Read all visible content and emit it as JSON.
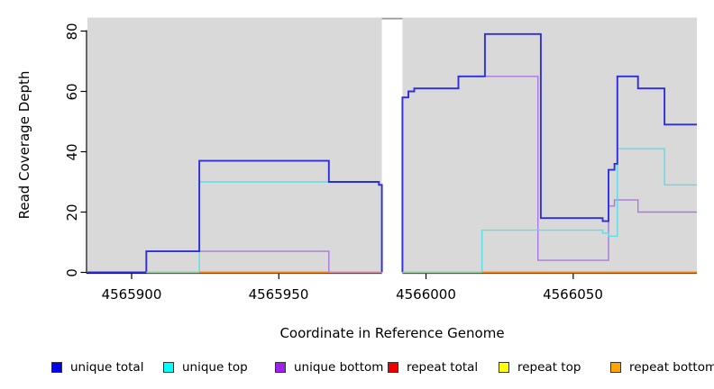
{
  "figure": {
    "background": "#ffffff",
    "plot_background": "#d9d9d9",
    "axis_color": "#000000",
    "gap_cap_color": "#999999"
  },
  "axes": {
    "x_label": "Coordinate in Reference Genome",
    "y_label": "Read Coverage Depth",
    "x_ticks": [
      {
        "value": 4565900,
        "label": "4565900"
      },
      {
        "value": 4565950,
        "label": "4565950"
      },
      {
        "value": 4566000,
        "label": "4566000"
      },
      {
        "value": 4566050,
        "label": "4566050"
      }
    ],
    "y_ticks": [
      {
        "value": 0,
        "label": "0"
      },
      {
        "value": 20,
        "label": "20"
      },
      {
        "value": 40,
        "label": "40"
      },
      {
        "value": 60,
        "label": "60"
      },
      {
        "value": 80,
        "label": "80"
      }
    ]
  },
  "legend": {
    "items": [
      {
        "label": "unique total",
        "color": "#0000ee"
      },
      {
        "label": "unique top",
        "color": "#00ffff"
      },
      {
        "label": "unique bottom",
        "color": "#a020f0"
      },
      {
        "label": "repeat total",
        "color": "#ee0000"
      },
      {
        "label": "repeat top",
        "color": "#ffff00"
      },
      {
        "label": "repeat bottom",
        "color": "#ffa500"
      }
    ]
  },
  "chart_data": {
    "type": "line",
    "subtype": "step-coverage",
    "title": "",
    "xlabel": "Coordinate in Reference Genome",
    "ylabel": "Read Coverage Depth",
    "x_domain": [
      4565885,
      4566092
    ],
    "y_domain": [
      0,
      84.5
    ],
    "grid": false,
    "legend_position": "bottom",
    "gap": {
      "from": 4565985,
      "to": 4565992,
      "note": "white vertical band, no data plotted"
    },
    "series": [
      {
        "name": "repeat total",
        "color": "#e02020",
        "width": 1.4,
        "segments": [
          [
            [
              4565885,
              0
            ],
            [
              4565985,
              0
            ]
          ],
          [
            [
              4565992,
              0
            ],
            [
              4566092,
              0
            ]
          ]
        ]
      },
      {
        "name": "repeat top",
        "color": "#ffd900",
        "width": 1.4,
        "segments": [
          [
            [
              4565885,
              0
            ],
            [
              4565985,
              0
            ]
          ],
          [
            [
              4565992,
              0
            ],
            [
              4566092,
              0
            ]
          ]
        ]
      },
      {
        "name": "repeat bottom",
        "color": "#ff8c00",
        "width": 1.8,
        "segments": [
          [
            [
              4565885,
              0
            ],
            [
              4565985,
              0
            ]
          ],
          [
            [
              4565992,
              0
            ],
            [
              4566092,
              0
            ]
          ]
        ]
      },
      {
        "name": "unique bottom",
        "color": "#ab77e0",
        "width": 1.4,
        "segments": [
          [
            [
              4565885,
              0
            ],
            [
              4565905,
              7
            ],
            [
              4565967,
              0
            ],
            [
              4565985,
              0
            ]
          ],
          [
            [
              4565992,
              0
            ],
            [
              4565992,
              58
            ],
            [
              4565994,
              60
            ],
            [
              4565996,
              61
            ],
            [
              4566011,
              65
            ],
            [
              4566038,
              4
            ],
            [
              4566062,
              22
            ],
            [
              4566064,
              24
            ],
            [
              4566072,
              20
            ],
            [
              4566092,
              20
            ]
          ]
        ]
      },
      {
        "name": "unique top",
        "color": "#5cdde8",
        "width": 1.4,
        "segments": [
          [
            [
              4565885,
              0
            ],
            [
              4565923,
              30
            ],
            [
              4565984,
              29
            ],
            [
              4565985,
              0
            ]
          ],
          [
            [
              4565992,
              0
            ],
            [
              4566019,
              14
            ],
            [
              4566060,
              13
            ],
            [
              4566062,
              12
            ],
            [
              4566065,
              41
            ],
            [
              4566081,
              29
            ],
            [
              4566092,
              29
            ]
          ]
        ]
      },
      {
        "name": "unique total",
        "color": "#2e2ee0",
        "width": 1.9,
        "segments": [
          [
            [
              4565885,
              0
            ],
            [
              4565905,
              7
            ],
            [
              4565923,
              37
            ],
            [
              4565967,
              30
            ],
            [
              4565984,
              29
            ],
            [
              4565985,
              0
            ]
          ],
          [
            [
              4565992,
              0
            ],
            [
              4565992,
              58
            ],
            [
              4565994,
              60
            ],
            [
              4565996,
              61
            ],
            [
              4566011,
              65
            ],
            [
              4566020,
              79
            ],
            [
              4566039,
              18
            ],
            [
              4566060,
              17
            ],
            [
              4566062,
              34
            ],
            [
              4566064,
              36
            ],
            [
              4566065,
              65
            ],
            [
              4566072,
              61
            ],
            [
              4566081,
              49
            ],
            [
              4566092,
              49
            ]
          ]
        ]
      }
    ],
    "baseline_segments": [
      {
        "from": 4565885,
        "to": 4565905,
        "color": "#2e2ee0",
        "width": 1.9,
        "note": "unique lines at 0"
      },
      {
        "from": 4565905,
        "to": 4565923,
        "color": "#9ed2a4",
        "width": 1.5,
        "note": "cyan+orange blend at 0"
      },
      {
        "from": 4565923,
        "to": 4565967,
        "color": "#ff8c00",
        "width": 1.8,
        "note": "repeat bottom at 0"
      },
      {
        "from": 4565967,
        "to": 4565985,
        "color": "#d98fae",
        "width": 1.5,
        "note": "purple+orange blend at 0"
      },
      {
        "from": 4565992,
        "to": 4566019,
        "color": "#9ed2a4",
        "width": 1.5,
        "note": "cyan+orange blend at 0"
      },
      {
        "from": 4566019,
        "to": 4566092,
        "color": "#ff8c00",
        "width": 1.8,
        "note": "repeat bottom at 0"
      }
    ]
  }
}
